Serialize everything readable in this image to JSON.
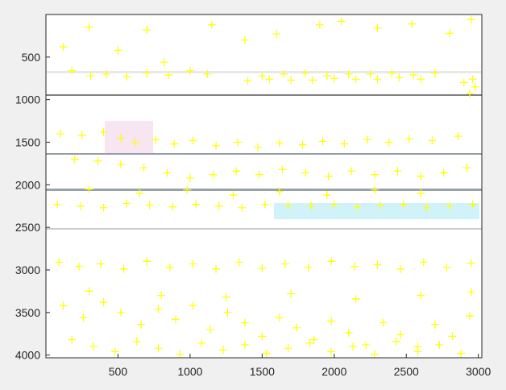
{
  "window": {
    "background": "#f0f0f0"
  },
  "chart_data": {
    "type": "scatter",
    "title": "",
    "xlabel": "",
    "ylabel": "",
    "xlim": [
      0,
      3024
    ],
    "ylim": [
      0,
      4032
    ],
    "y_reversed": true,
    "grid": false,
    "legend": "none",
    "x_ticks": [
      500,
      1000,
      1500,
      2000,
      2500,
      3000
    ],
    "y_ticks": [
      500,
      1000,
      1500,
      2000,
      2500,
      3000,
      3500,
      4000
    ],
    "x_tick_labels": [
      "500",
      "1000",
      "1500",
      "2000",
      "2500",
      "3000"
    ],
    "y_tick_labels": [
      "500",
      "1000",
      "1500",
      "2000",
      "2500",
      "3000",
      "3500",
      "4000"
    ],
    "marker": "+",
    "series": [
      {
        "color": "#ffff00",
        "marker": "+",
        "points": [
          [
            120,
            380
          ],
          [
            300,
            150
          ],
          [
            500,
            420
          ],
          [
            700,
            180
          ],
          [
            820,
            560
          ],
          [
            1150,
            120
          ],
          [
            1380,
            300
          ],
          [
            1600,
            230
          ],
          [
            1900,
            120
          ],
          [
            2050,
            80
          ],
          [
            2300,
            160
          ],
          [
            2540,
            110
          ],
          [
            2800,
            220
          ],
          [
            2950,
            60
          ],
          [
            180,
            660
          ],
          [
            310,
            720
          ],
          [
            420,
            700
          ],
          [
            560,
            730
          ],
          [
            700,
            690
          ],
          [
            850,
            710
          ],
          [
            1000,
            660
          ],
          [
            1120,
            700
          ],
          [
            1500,
            720
          ],
          [
            1650,
            700
          ],
          [
            1800,
            690
          ],
          [
            1950,
            720
          ],
          [
            2100,
            700
          ],
          [
            2250,
            700
          ],
          [
            2400,
            690
          ],
          [
            2550,
            710
          ],
          [
            2700,
            690
          ],
          [
            2900,
            800
          ],
          [
            2960,
            760
          ],
          [
            2980,
            850
          ],
          [
            2940,
            930
          ],
          [
            1400,
            780
          ],
          [
            1550,
            760
          ],
          [
            1700,
            770
          ],
          [
            1850,
            770
          ],
          [
            2000,
            750
          ],
          [
            2150,
            760
          ],
          [
            2300,
            760
          ],
          [
            2450,
            740
          ],
          [
            2600,
            760
          ],
          [
            100,
            1400
          ],
          [
            250,
            1420
          ],
          [
            400,
            1380
          ],
          [
            520,
            1450
          ],
          [
            620,
            1500
          ],
          [
            760,
            1470
          ],
          [
            890,
            1520
          ],
          [
            1020,
            1480
          ],
          [
            1180,
            1540
          ],
          [
            1330,
            1500
          ],
          [
            1470,
            1560
          ],
          [
            1620,
            1510
          ],
          [
            1780,
            1530
          ],
          [
            1920,
            1490
          ],
          [
            2070,
            1520
          ],
          [
            2230,
            1470
          ],
          [
            2380,
            1500
          ],
          [
            2520,
            1460
          ],
          [
            2680,
            1480
          ],
          [
            2860,
            1430
          ],
          [
            200,
            1700
          ],
          [
            360,
            1720
          ],
          [
            520,
            1760
          ],
          [
            680,
            1800
          ],
          [
            840,
            1860
          ],
          [
            1000,
            1920
          ],
          [
            1160,
            1880
          ],
          [
            1320,
            1840
          ],
          [
            1480,
            1880
          ],
          [
            1640,
            1820
          ],
          [
            1800,
            1860
          ],
          [
            1960,
            1900
          ],
          [
            2120,
            1840
          ],
          [
            2280,
            1880
          ],
          [
            2440,
            1840
          ],
          [
            2600,
            1900
          ],
          [
            2760,
            1860
          ],
          [
            2920,
            1800
          ],
          [
            80,
            2230
          ],
          [
            240,
            2250
          ],
          [
            400,
            2270
          ],
          [
            560,
            2220
          ],
          [
            720,
            2240
          ],
          [
            880,
            2260
          ],
          [
            1040,
            2230
          ],
          [
            1200,
            2250
          ],
          [
            1360,
            2270
          ],
          [
            1520,
            2230
          ],
          [
            1680,
            2240
          ],
          [
            1840,
            2250
          ],
          [
            2000,
            2230
          ],
          [
            2160,
            2260
          ],
          [
            2320,
            2240
          ],
          [
            2480,
            2230
          ],
          [
            2640,
            2270
          ],
          [
            2800,
            2250
          ],
          [
            2960,
            2230
          ],
          [
            300,
            2050
          ],
          [
            650,
            2100
          ],
          [
            980,
            2060
          ],
          [
            1300,
            2120
          ],
          [
            1620,
            2080
          ],
          [
            1950,
            2120
          ],
          [
            2280,
            2060
          ],
          [
            2600,
            2100
          ],
          [
            90,
            2910
          ],
          [
            230,
            2960
          ],
          [
            380,
            2930
          ],
          [
            540,
            2990
          ],
          [
            700,
            2900
          ],
          [
            860,
            2970
          ],
          [
            1020,
            2930
          ],
          [
            1180,
            2990
          ],
          [
            1340,
            2910
          ],
          [
            1500,
            2980
          ],
          [
            1660,
            2930
          ],
          [
            1820,
            2970
          ],
          [
            1980,
            2900
          ],
          [
            2140,
            2960
          ],
          [
            2300,
            2940
          ],
          [
            2460,
            2990
          ],
          [
            2620,
            2910
          ],
          [
            2780,
            2970
          ],
          [
            2950,
            2920
          ],
          [
            120,
            3420
          ],
          [
            260,
            3560
          ],
          [
            400,
            3380
          ],
          [
            520,
            3500
          ],
          [
            660,
            3640
          ],
          [
            780,
            3460
          ],
          [
            900,
            3580
          ],
          [
            1020,
            3420
          ],
          [
            1140,
            3700
          ],
          [
            1260,
            3500
          ],
          [
            1380,
            3620
          ],
          [
            1500,
            3780
          ],
          [
            1620,
            3560
          ],
          [
            1740,
            3680
          ],
          [
            1860,
            3820
          ],
          [
            1980,
            3600
          ],
          [
            2100,
            3740
          ],
          [
            2220,
            3880
          ],
          [
            2340,
            3620
          ],
          [
            2460,
            3760
          ],
          [
            2580,
            3900
          ],
          [
            2700,
            3640
          ],
          [
            2820,
            3780
          ],
          [
            2940,
            3540
          ],
          [
            180,
            3820
          ],
          [
            330,
            3900
          ],
          [
            480,
            3960
          ],
          [
            630,
            3840
          ],
          [
            780,
            3920
          ],
          [
            930,
            3990
          ],
          [
            1080,
            3860
          ],
          [
            1230,
            3940
          ],
          [
            1380,
            3880
          ],
          [
            1530,
            3980
          ],
          [
            1680,
            3920
          ],
          [
            1830,
            3860
          ],
          [
            1980,
            3960
          ],
          [
            2130,
            3900
          ],
          [
            2280,
            3990
          ],
          [
            2430,
            3840
          ],
          [
            2580,
            3960
          ],
          [
            2730,
            3880
          ],
          [
            2880,
            3980
          ],
          [
            300,
            3250
          ],
          [
            800,
            3300
          ],
          [
            1250,
            3320
          ],
          [
            1700,
            3280
          ],
          [
            2150,
            3340
          ],
          [
            2600,
            3300
          ],
          [
            2950,
            3260
          ]
        ]
      }
    ]
  }
}
